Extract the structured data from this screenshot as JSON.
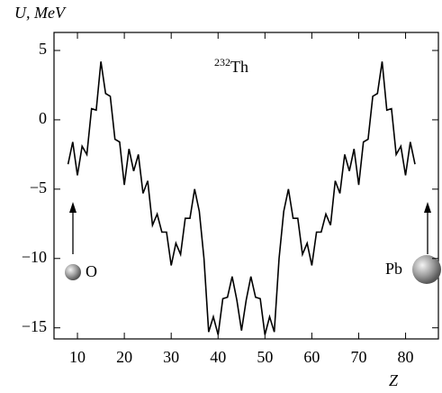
{
  "chart_data": {
    "type": "line",
    "y_label": "U, MeV",
    "x_label": "Z",
    "annotation_mass": "232",
    "annotation_element": "Th",
    "left_label": "O",
    "right_label": "Pb",
    "color": "#000000",
    "x": [
      8,
      9,
      10,
      11,
      12,
      13,
      14,
      15,
      16,
      17,
      18,
      19,
      20,
      21,
      22,
      23,
      24,
      25,
      26,
      27,
      28,
      29,
      30,
      31,
      32,
      33,
      34,
      35,
      36,
      37,
      38,
      39,
      40,
      41,
      42,
      43,
      44,
      45,
      46,
      47,
      48,
      49,
      50,
      51,
      52,
      53,
      54,
      55,
      56,
      57,
      58,
      59,
      60,
      61,
      62,
      63,
      64,
      65,
      66,
      67,
      68,
      69,
      70,
      71,
      72,
      73,
      74,
      75,
      76,
      77,
      78,
      79,
      80,
      81,
      82
    ],
    "values": [
      -3.2,
      -1.6,
      -4.0,
      -1.9,
      -2.5,
      0.8,
      0.7,
      4.2,
      1.9,
      1.7,
      -1.4,
      -1.6,
      -4.7,
      -2.1,
      -3.7,
      -2.5,
      -5.3,
      -4.4,
      -7.6,
      -6.8,
      -8.1,
      -8.1,
      -10.5,
      -8.9,
      -9.7,
      -7.1,
      -7.1,
      -5.0,
      -6.6,
      -10.0,
      -15.3,
      -14.2,
      -15.5,
      -12.9,
      -12.8,
      -11.3,
      -13.0,
      -15.2,
      -13.0,
      -11.3,
      -12.8,
      -12.9,
      -15.5,
      -14.2,
      -15.3,
      -10.0,
      -6.6,
      -5.0,
      -7.1,
      -7.1,
      -9.7,
      -8.9,
      -10.5,
      -8.1,
      -8.1,
      -6.8,
      -7.6,
      -4.4,
      -5.3,
      -2.5,
      -3.7,
      -2.1,
      -4.7,
      -1.6,
      -1.4,
      1.7,
      1.9,
      4.2,
      0.7,
      0.8,
      -2.5,
      -1.9,
      -4.0,
      -1.6,
      -3.2
    ],
    "xlim": [
      5,
      87
    ],
    "ylim": [
      -15.8,
      6.3
    ],
    "xticks": [
      10,
      20,
      30,
      40,
      50,
      60,
      70,
      80
    ],
    "yticks": [
      5,
      0,
      {
        "value": -5,
        "label": "−5"
      },
      {
        "value": -10,
        "label": "−10"
      },
      {
        "value": -15,
        "label": "−15"
      }
    ]
  }
}
